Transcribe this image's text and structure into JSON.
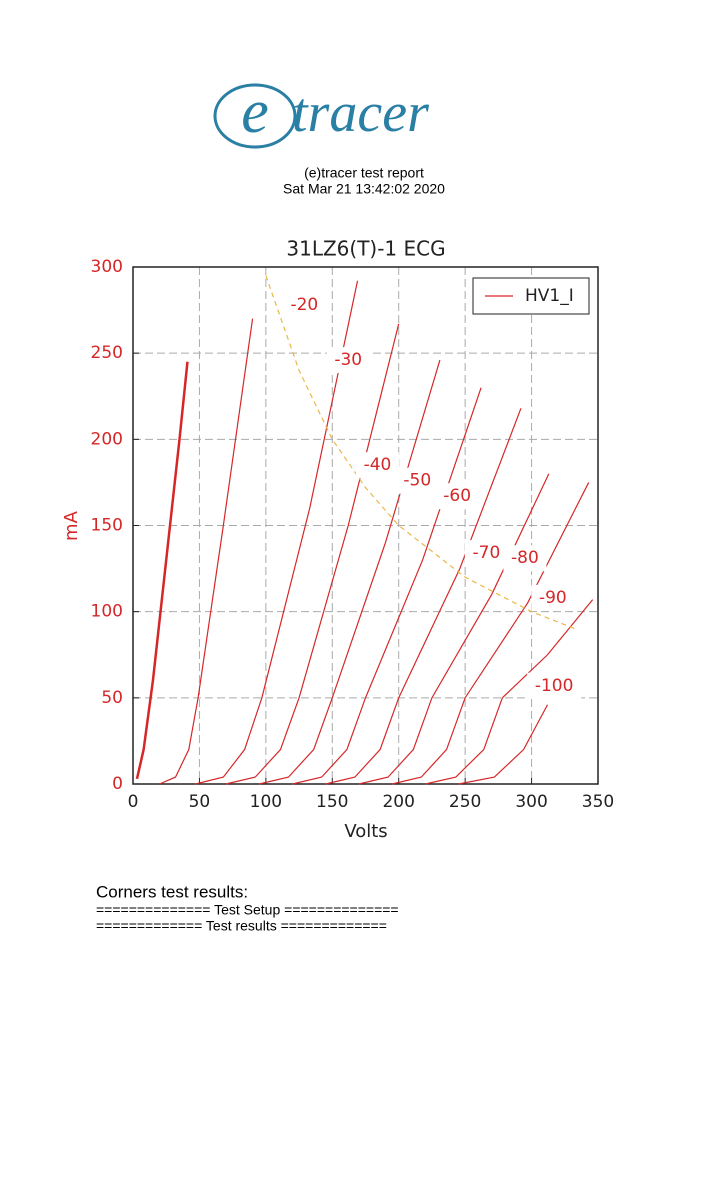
{
  "header": {
    "logo_mark": "e",
    "logo_text": "tracer",
    "title": "(e)tracer test report",
    "date": "Sat Mar 21 13:42:02 2020"
  },
  "chart_data": {
    "type": "line",
    "title": "31LZ6(T)-1 ECG",
    "x_label": "Volts",
    "y_label": "mA",
    "xlim": [
      0,
      350
    ],
    "ylim": [
      0,
      300
    ],
    "xticks": [
      0,
      50,
      100,
      150,
      200,
      250,
      300,
      350
    ],
    "yticks": [
      0,
      50,
      100,
      150,
      200,
      250,
      300
    ],
    "grid": true,
    "legend": "upper right",
    "series": [
      {
        "name": "HV1_I",
        "color": "#d62728",
        "curves": [
          {
            "x": [
              3,
              8,
              15,
              25,
              35,
              41
            ],
            "values": [
              3,
              20,
              60,
              130,
              200,
              245
            ]
          },
          {
            "x": [
              20,
              32,
              42,
              49,
              68,
              90
            ],
            "values": [
              0,
              4,
              20,
              50,
              150,
              270
            ]
          },
          {
            "x": [
              47,
              68,
              84,
              97,
              133,
              169
            ],
            "values": [
              0,
              4,
              20,
              50,
              160,
              292
            ]
          },
          {
            "x": [
              70,
              92,
              111,
              125,
              162,
              200
            ],
            "values": [
              0,
              4,
              20,
              50,
              150,
              267
            ]
          },
          {
            "x": [
              95,
              117,
              136,
              150,
              190,
              231
            ],
            "values": [
              0,
              4,
              20,
              50,
              140,
              246
            ]
          },
          {
            "x": [
              120,
              142,
              161,
              175,
              218,
              262
            ],
            "values": [
              0,
              4,
              20,
              50,
              130,
              230
            ]
          },
          {
            "x": [
              145,
              167,
              186,
              200,
              246,
              292
            ],
            "values": [
              0,
              4,
              20,
              50,
              125,
              218
            ]
          },
          {
            "x": [
              170,
              192,
              211,
              225,
              270,
              313
            ],
            "values": [
              0,
              4,
              20,
              50,
              110,
              180
            ]
          },
          {
            "x": [
              195,
              217,
              236,
              250,
              297,
              343
            ],
            "values": [
              0,
              4,
              20,
              50,
              105,
              175
            ]
          },
          {
            "x": [
              220,
              243,
              264,
              278,
              312,
              346
            ],
            "values": [
              0,
              4,
              20,
              50,
              75,
              107
            ]
          },
          {
            "x": [
              245,
              272,
              294,
              312
            ],
            "values": [
              0,
              4,
              20,
              46
            ]
          }
        ]
      }
    ],
    "dashed_curve": {
      "color": "#e8b84a",
      "x": [
        100,
        125,
        150,
        175,
        200,
        250,
        300,
        333
      ],
      "values": [
        295,
        240,
        200,
        172,
        150,
        120,
        100,
        90
      ]
    },
    "annotations": [
      {
        "text": "-20",
        "x": 129,
        "y": 278
      },
      {
        "text": "-30",
        "x": 162,
        "y": 246
      },
      {
        "text": "-40",
        "x": 184,
        "y": 185
      },
      {
        "text": "-50",
        "x": 214,
        "y": 176
      },
      {
        "text": "-60",
        "x": 244,
        "y": 167
      },
      {
        "text": "-70",
        "x": 266,
        "y": 134
      },
      {
        "text": "-80",
        "x": 295,
        "y": 131
      },
      {
        "text": "-90",
        "x": 316,
        "y": 108
      },
      {
        "text": "-100",
        "x": 317,
        "y": 57
      }
    ]
  },
  "footer": {
    "heading": "Corners test results:",
    "lines": [
      "============== Test Setup ==============",
      "============= Test results ============="
    ]
  }
}
